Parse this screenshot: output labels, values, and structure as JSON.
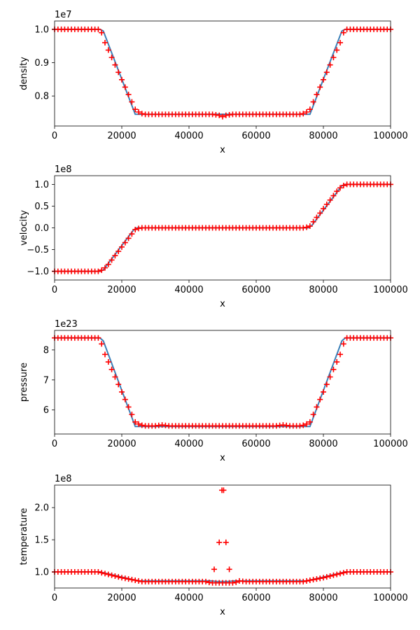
{
  "chart_data": [
    {
      "type": "line",
      "xlabel": "x",
      "ylabel": "density",
      "offset_label": "1e7",
      "xlim": [
        0,
        100000
      ],
      "ylim": [
        7100000,
        10250000
      ],
      "xticks": [
        0,
        20000,
        40000,
        60000,
        80000,
        100000
      ],
      "xtick_labels": [
        "0",
        "20000",
        "40000",
        "60000",
        "80000",
        "100000"
      ],
      "yticks": [
        8000000,
        9000000,
        10000000
      ],
      "ytick_labels": [
        "0.8",
        "0.9",
        "1.0"
      ],
      "grid": false,
      "series": [
        {
          "style": "line",
          "color": "#3a80b8",
          "x": [
            0,
            13500,
            14500,
            24000,
            76000,
            85500,
            86500,
            100000
          ],
          "y": [
            10000000,
            10000000,
            9950000,
            7450000,
            7450000,
            9950000,
            10000000,
            10000000
          ]
        },
        {
          "style": "markers",
          "color": "#ff0000",
          "marker": "+",
          "x": [
            0,
            100000
          ],
          "y": [
            10000000,
            10000000
          ],
          "profile": [
            [
              0,
              10000000
            ],
            [
              13000,
              10000000
            ],
            [
              14000,
              9900000
            ],
            [
              15000,
              9600000
            ],
            [
              24000,
              7600000
            ],
            [
              25500,
              7480000
            ],
            [
              27000,
              7450000
            ],
            [
              47000,
              7450000
            ],
            [
              49000,
              7420000
            ],
            [
              50000,
              7380000
            ],
            [
              51000,
              7420000
            ],
            [
              53000,
              7450000
            ],
            [
              73000,
              7450000
            ],
            [
              74500,
              7480000
            ],
            [
              76000,
              7600000
            ],
            [
              85000,
              9600000
            ],
            [
              86000,
              9900000
            ],
            [
              87000,
              10000000
            ],
            [
              100000,
              10000000
            ]
          ]
        }
      ]
    },
    {
      "type": "line",
      "xlabel": "x",
      "ylabel": "velocity",
      "offset_label": "1e8",
      "xlim": [
        0,
        100000
      ],
      "ylim": [
        -120000000,
        120000000
      ],
      "xticks": [
        0,
        20000,
        40000,
        60000,
        80000,
        100000
      ],
      "xtick_labels": [
        "0",
        "20000",
        "40000",
        "60000",
        "80000",
        "100000"
      ],
      "yticks": [
        -100000000,
        -50000000,
        0,
        50000000,
        100000000
      ],
      "ytick_labels": [
        "−1.0",
        "−0.5",
        "0.0",
        "0.5",
        "1.0"
      ],
      "grid": false,
      "series": [
        {
          "style": "line",
          "color": "#3a80b8",
          "x": [
            0,
            13500,
            14500,
            23500,
            24500,
            75500,
            76500,
            85500,
            86500,
            100000
          ],
          "y": [
            -100000000,
            -100000000,
            -97000000,
            -5000000,
            0,
            0,
            5000000,
            97000000,
            100000000,
            100000000
          ]
        },
        {
          "style": "markers",
          "color": "#ff0000",
          "marker": "+",
          "profile": [
            [
              0,
              -100000000
            ],
            [
              13000,
              -100000000
            ],
            [
              14500,
              -96000000
            ],
            [
              16000,
              -84000000
            ],
            [
              24000,
              -4000000
            ],
            [
              25500,
              0
            ],
            [
              74500,
              0
            ],
            [
              76000,
              4000000
            ],
            [
              84000,
              84000000
            ],
            [
              85500,
              96000000
            ],
            [
              87000,
              100000000
            ],
            [
              100000,
              100000000
            ]
          ]
        }
      ]
    },
    {
      "type": "line",
      "xlabel": "x",
      "ylabel": "pressure",
      "offset_label": "1e23",
      "xlim": [
        0,
        100000
      ],
      "ylim": [
        5.2e+23,
        8.65e+23
      ],
      "xticks": [
        0,
        20000,
        40000,
        60000,
        80000,
        100000
      ],
      "xtick_labels": [
        "0",
        "20000",
        "40000",
        "60000",
        "80000",
        "100000"
      ],
      "yticks": [
        6e+23,
        7e+23,
        8e+23
      ],
      "ytick_labels": [
        "6",
        "7",
        "8"
      ],
      "grid": false,
      "series": [
        {
          "style": "line",
          "color": "#3a80b8",
          "x": [
            0,
            13500,
            14500,
            24000,
            76000,
            85500,
            86500,
            100000
          ],
          "y": [
            8.4e+23,
            8.4e+23,
            8.3e+23,
            5.45e+23,
            5.45e+23,
            8.3e+23,
            8.4e+23,
            8.4e+23
          ]
        },
        {
          "style": "markers",
          "color": "#ff0000",
          "marker": "+",
          "profile": [
            [
              0,
              8.4e+23
            ],
            [
              13000,
              8.4e+23
            ],
            [
              14000,
              8.2e+23
            ],
            [
              15000,
              7.85e+23
            ],
            [
              24000,
              5.6e+23
            ],
            [
              25500,
              5.5e+23
            ],
            [
              27000,
              5.47e+23
            ],
            [
              30000,
              5.47e+23
            ],
            [
              32000,
              5.5e+23
            ],
            [
              34000,
              5.47e+23
            ],
            [
              66000,
              5.47e+23
            ],
            [
              68000,
              5.5e+23
            ],
            [
              70000,
              5.47e+23
            ],
            [
              73000,
              5.47e+23
            ],
            [
              74500,
              5.5e+23
            ],
            [
              76000,
              5.6e+23
            ],
            [
              85000,
              7.85e+23
            ],
            [
              86000,
              8.2e+23
            ],
            [
              87000,
              8.4e+23
            ],
            [
              100000,
              8.4e+23
            ]
          ]
        }
      ]
    },
    {
      "type": "line",
      "xlabel": "x",
      "ylabel": "temperature",
      "offset_label": "1e8",
      "xlim": [
        0,
        100000
      ],
      "ylim": [
        75000000,
        235000000
      ],
      "xticks": [
        0,
        20000,
        40000,
        60000,
        80000,
        100000
      ],
      "xtick_labels": [
        "0",
        "20000",
        "40000",
        "60000",
        "80000",
        "100000"
      ],
      "yticks": [
        100000000,
        150000000,
        200000000
      ],
      "ytick_labels": [
        "1.0",
        "1.5",
        "2.0"
      ],
      "grid": false,
      "series": [
        {
          "style": "line",
          "color": "#3a80b8",
          "x": [
            0,
            13500,
            20000,
            25000,
            47000,
            48000,
            52000,
            53000,
            75000,
            80000,
            86500,
            100000
          ],
          "y": [
            100000000,
            100000000,
            92000000,
            86000000,
            86000000,
            85000000,
            85000000,
            86000000,
            86000000,
            92000000,
            100000000,
            100000000
          ]
        },
        {
          "style": "markers",
          "color": "#ff0000",
          "marker": "+",
          "profile": [
            [
              0,
              100000000
            ],
            [
              13000,
              100000000
            ],
            [
              20000,
              91000000
            ],
            [
              26000,
              85000000
            ],
            [
              45000,
              85000000
            ],
            [
              46500,
              83000000
            ],
            [
              53500,
              83000000
            ],
            [
              55000,
              86000000
            ],
            [
              56500,
              85000000
            ],
            [
              74000,
              85000000
            ],
            [
              80000,
              91000000
            ],
            [
              87000,
              100000000
            ],
            [
              100000,
              100000000
            ]
          ],
          "outliers": [
            [
              47500,
              104000000
            ],
            [
              49000,
              146000000
            ],
            [
              49800,
              227000000
            ],
            [
              50300,
              227000000
            ],
            [
              51000,
              146000000
            ],
            [
              52000,
              104000000
            ]
          ]
        }
      ]
    }
  ]
}
